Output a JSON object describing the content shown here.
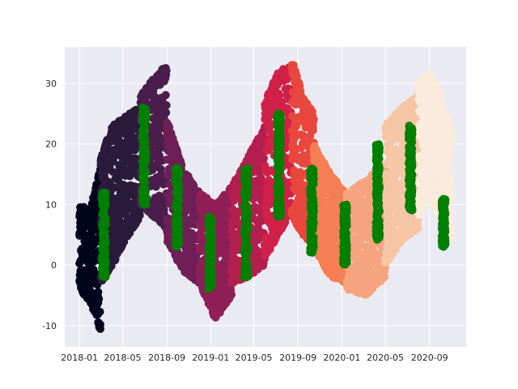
{
  "chart_data": {
    "type": "scatter",
    "title": "",
    "xlabel": "",
    "ylabel": "",
    "xlim": [
      "2017-11-21",
      "2020-12-12"
    ],
    "ylim": [
      -13.5,
      36
    ],
    "grid": true,
    "x_tick_labels": [
      "2018-01",
      "2018-05",
      "2018-09",
      "2019-01",
      "2019-05",
      "2019-09",
      "2020-01",
      "2020-05",
      "2020-09"
    ],
    "y_tick_labels": [
      "-10",
      "0",
      "10",
      "20",
      "30"
    ],
    "series": [
      {
        "color": "#03051a",
        "period": [
          "2018-01-01",
          "2018-02-28"
        ],
        "envelope": [
          [
            0,
            -4,
            10
          ],
          [
            0.5,
            -6,
            9
          ],
          [
            1,
            -11,
            16
          ]
        ]
      },
      {
        "color": "#2a1b3d",
        "period": [
          "2018-03-01",
          "2018-06-20"
        ],
        "envelope": [
          [
            0,
            -3,
            18
          ],
          [
            0.3,
            0,
            23
          ],
          [
            0.7,
            5,
            25
          ],
          [
            1,
            8,
            26
          ]
        ]
      },
      {
        "color": "#4b1d4c",
        "period": [
          "2018-06-20",
          "2018-08-31"
        ],
        "envelope": [
          [
            0,
            10,
            28
          ],
          [
            0.5,
            8,
            31
          ],
          [
            1,
            6,
            33
          ]
        ]
      },
      {
        "color": "#6d1f56",
        "period": [
          "2018-09-01",
          "2018-11-30"
        ],
        "envelope": [
          [
            0,
            4,
            24
          ],
          [
            0.5,
            -1,
            16
          ],
          [
            1,
            -3,
            12
          ]
        ]
      },
      {
        "color": "#8f1f57",
        "period": [
          "2018-12-01",
          "2019-02-28"
        ],
        "envelope": [
          [
            0,
            -3,
            12
          ],
          [
            0.5,
            -9,
            10
          ],
          [
            1,
            -5,
            13
          ]
        ]
      },
      {
        "color": "#b31f4f",
        "period": [
          "2019-03-01",
          "2019-05-31"
        ],
        "envelope": [
          [
            0,
            -3,
            13
          ],
          [
            0.5,
            -2,
            18
          ],
          [
            1,
            0,
            23
          ]
        ]
      },
      {
        "color": "#d02148",
        "period": [
          "2019-06-01",
          "2019-08-15"
        ],
        "envelope": [
          [
            0,
            1,
            27
          ],
          [
            0.5,
            5,
            32
          ],
          [
            1,
            9,
            33
          ]
        ]
      },
      {
        "color": "#e8473e",
        "period": [
          "2019-08-15",
          "2019-10-15"
        ],
        "envelope": [
          [
            0,
            8,
            34
          ],
          [
            0.5,
            5,
            28
          ],
          [
            1,
            3,
            25
          ]
        ]
      },
      {
        "color": "#f57e55",
        "period": [
          "2019-10-15",
          "2020-01-15"
        ],
        "envelope": [
          [
            0,
            3,
            20
          ],
          [
            0.5,
            -2,
            15
          ],
          [
            1,
            -3,
            12
          ]
        ]
      },
      {
        "color": "#f6a480",
        "period": [
          "2020-01-15",
          "2020-04-30"
        ],
        "envelope": [
          [
            0,
            -4,
            12
          ],
          [
            0.5,
            -5,
            14
          ],
          [
            1,
            -2,
            17
          ]
        ]
      },
      {
        "color": "#f6c5a6",
        "period": [
          "2020-05-01",
          "2020-07-31"
        ],
        "envelope": [
          [
            0,
            0,
            23
          ],
          [
            0.5,
            4,
            26
          ],
          [
            1,
            6,
            28
          ]
        ]
      },
      {
        "color": "#faebdd",
        "period": [
          "2020-08-01",
          "2020-10-31"
        ],
        "envelope": [
          [
            0,
            8,
            30
          ],
          [
            0.3,
            12,
            32
          ],
          [
            0.7,
            7,
            28
          ],
          [
            1,
            4,
            22
          ]
        ]
      },
      {
        "color": "#008000",
        "period": [
          "2018-03-05",
          "2018-03-15"
        ],
        "envelope": [
          [
            0,
            -2,
            12
          ],
          [
            1,
            -2,
            12
          ]
        ]
      },
      {
        "color": "#008000",
        "period": [
          "2018-06-25",
          "2018-07-05"
        ],
        "envelope": [
          [
            0,
            10,
            26
          ],
          [
            1,
            10,
            26
          ]
        ]
      },
      {
        "color": "#008000",
        "period": [
          "2018-09-25",
          "2018-10-05"
        ],
        "envelope": [
          [
            0,
            3,
            16
          ],
          [
            1,
            3,
            16
          ]
        ]
      },
      {
        "color": "#008000",
        "period": [
          "2018-12-26",
          "2019-01-05"
        ],
        "envelope": [
          [
            0,
            -4,
            8
          ],
          [
            1,
            -4,
            8
          ]
        ]
      },
      {
        "color": "#008000",
        "period": [
          "2019-04-05",
          "2019-04-15"
        ],
        "envelope": [
          [
            0,
            -2,
            16
          ],
          [
            1,
            -2,
            16
          ]
        ]
      },
      {
        "color": "#008000",
        "period": [
          "2019-07-05",
          "2019-07-15"
        ],
        "envelope": [
          [
            0,
            8,
            25
          ],
          [
            1,
            8,
            25
          ]
        ]
      },
      {
        "color": "#008000",
        "period": [
          "2019-10-05",
          "2019-10-15"
        ],
        "envelope": [
          [
            0,
            2,
            16
          ],
          [
            1,
            2,
            16
          ]
        ]
      },
      {
        "color": "#008000",
        "period": [
          "2020-01-05",
          "2020-01-15"
        ],
        "envelope": [
          [
            0,
            0,
            10
          ],
          [
            1,
            0,
            10
          ]
        ]
      },
      {
        "color": "#008000",
        "period": [
          "2020-04-05",
          "2020-04-15"
        ],
        "envelope": [
          [
            0,
            4,
            20
          ],
          [
            1,
            4,
            20
          ]
        ]
      },
      {
        "color": "#008000",
        "period": [
          "2020-07-05",
          "2020-07-15"
        ],
        "envelope": [
          [
            0,
            9,
            23
          ],
          [
            1,
            9,
            23
          ]
        ]
      },
      {
        "color": "#008000",
        "period": [
          "2020-10-05",
          "2020-10-15"
        ],
        "envelope": [
          [
            0,
            3,
            11
          ],
          [
            1,
            3,
            11
          ]
        ]
      }
    ]
  }
}
